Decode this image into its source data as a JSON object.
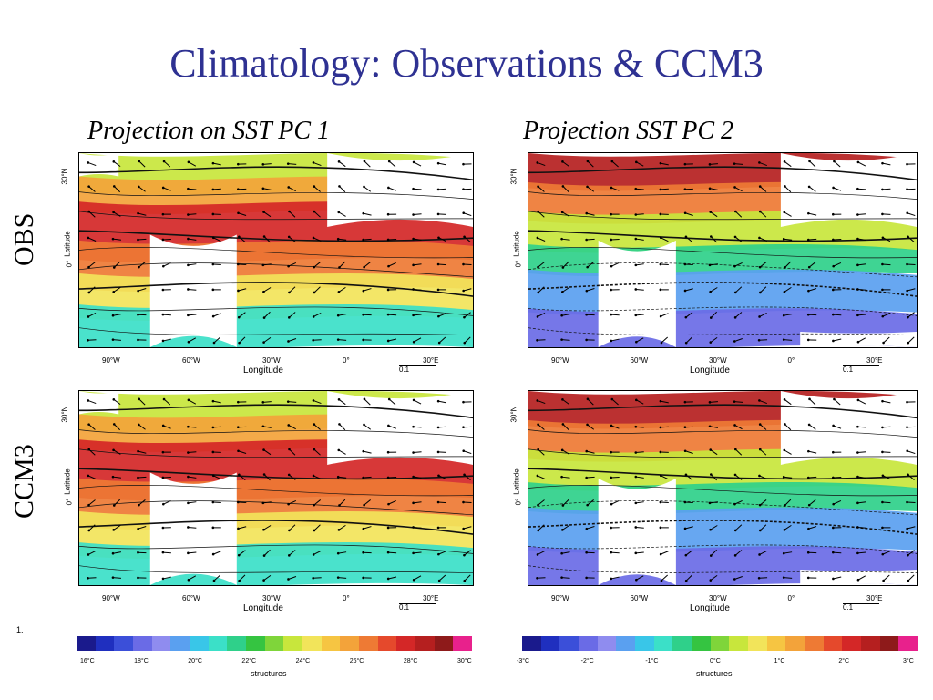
{
  "slide": {
    "title": "Climatology: Observations & CCM3",
    "col_titles": [
      "Projection on SST PC 1",
      "Projection SST PC 2"
    ],
    "row_labels": [
      "OBS",
      "CCM3"
    ],
    "footnote": "1."
  },
  "map_axes": {
    "lat_ticks": [
      "30°N",
      "0°"
    ],
    "lat_title": "Latitude",
    "lon_ticks": [
      "90°W",
      "60°W",
      "30°W",
      "0°",
      "30°E"
    ],
    "lon_title": "Longitude",
    "ref_vector_label": "0.1"
  },
  "colorbars": {
    "left": {
      "ticks": [
        "16°C",
        "18°C",
        "20°C",
        "22°C",
        "24°C",
        "26°C",
        "28°C",
        "30°C"
      ],
      "title": "structures"
    },
    "right": {
      "ticks": [
        "-3°C",
        "-2°C",
        "-1°C",
        "0°C",
        "1°C",
        "2°C",
        "3°C"
      ],
      "title": "structures"
    }
  },
  "palette": [
    "#1a1a8c",
    "#1f2fbf",
    "#3b4fd9",
    "#6a6be6",
    "#8f8cef",
    "#5aa0f0",
    "#39c6e8",
    "#3be0c8",
    "#2fd08a",
    "#35c441",
    "#7fd53a",
    "#c8e63c",
    "#f2e45a",
    "#f6c542",
    "#f3a33a",
    "#ee7a34",
    "#e5492c",
    "#d42727",
    "#b51f1f",
    "#8e1a1a",
    "#e8218c"
  ],
  "accent_title": "#2e3192"
}
